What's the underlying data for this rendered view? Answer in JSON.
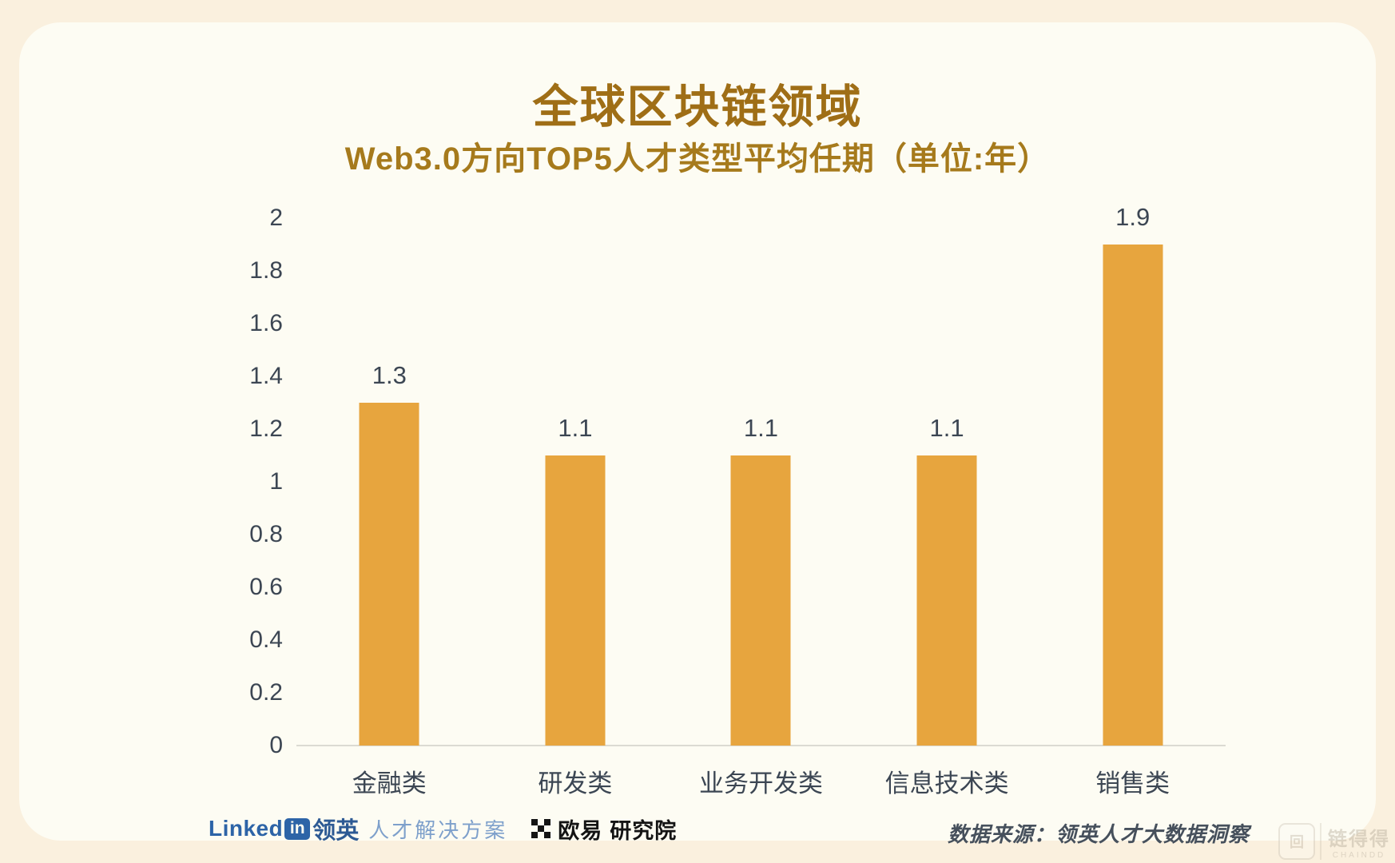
{
  "page": {
    "title": "全球区块链领域",
    "subtitle": "Web3.0方向TOP5人才类型平均任期（单位:年）"
  },
  "chart_data": {
    "type": "bar",
    "title": "全球区块链领域",
    "subtitle": "Web3.0方向TOP5人才类型平均任期（单位:年）",
    "categories": [
      "金融类",
      "研发类",
      "业务开发类",
      "信息技术类",
      "销售类"
    ],
    "values": [
      1.3,
      1.1,
      1.1,
      1.1,
      1.9
    ],
    "data_labels": [
      "1.3",
      "1.1",
      "1.1",
      "1.1",
      "1.9"
    ],
    "xlabel": "",
    "ylabel": "",
    "ylim": [
      0,
      2
    ],
    "y_ticks": [
      "2",
      "1.8",
      "1.6",
      "1.4",
      "1.2",
      "1",
      "0.8",
      "0.6",
      "0.4",
      "0.2",
      "0"
    ],
    "grid": false,
    "legend": false,
    "bar_color": "#E7A53E"
  },
  "footer": {
    "linkedin": {
      "word": "Linked",
      "badge": "in",
      "cn": "领英",
      "tagline": "人才解决方案"
    },
    "okx": {
      "name": "欧易",
      "suffix": "研究院"
    },
    "source": "数据来源：领英人才大数据洞察"
  },
  "watermark": {
    "cn": "链得得",
    "en": "CHAINDD"
  },
  "colors": {
    "background_outer": "#FAF0DE",
    "background_card": "#FDFCF3",
    "title": "#9F6E16",
    "subtitle": "#A67A1C",
    "bar": "#E7A53E",
    "axis_text": "#3C4653",
    "axis_line": "#DBDAD2",
    "linkedin_blue": "#2D64A7",
    "linkedin_light_blue": "#7EA0CB"
  }
}
